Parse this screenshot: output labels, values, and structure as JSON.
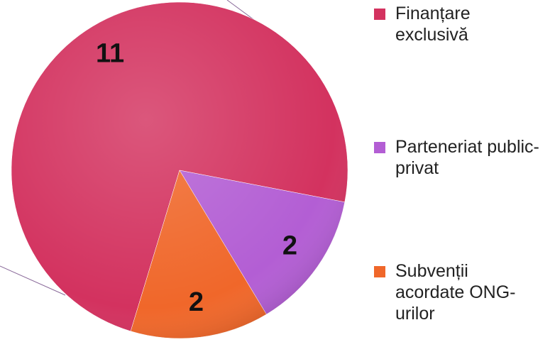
{
  "chart_data": {
    "type": "pie",
    "categories": [
      "Finanțare exclusivă",
      "Parteneriat public-privat",
      "Subvenții acordate ONG-urilor"
    ],
    "values": [
      11,
      2,
      2
    ],
    "colors": [
      "#d3325f",
      "#b35ed4",
      "#f0672a"
    ]
  }
}
